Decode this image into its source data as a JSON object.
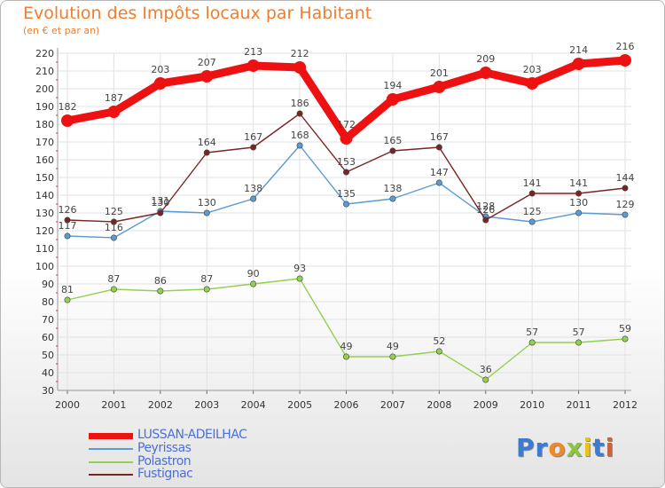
{
  "header": {
    "title": "Evolution des Impôts locaux par Habitant",
    "subtitle": "(en € et par an)"
  },
  "logo": {
    "letters": [
      "P",
      "r",
      "o",
      "x",
      "i",
      "t",
      "i"
    ],
    "colors": [
      "#3b7bd6",
      "#3b7bd6",
      "#f08a24",
      "#8cc63f",
      "#e8c21f",
      "#3b7bd6",
      "#e05d2a"
    ]
  },
  "chart_data": {
    "type": "line",
    "x": [
      "2000",
      "2001",
      "2002",
      "2003",
      "2004",
      "2005",
      "2006",
      "2007",
      "2008",
      "2009",
      "2010",
      "2011",
      "2012"
    ],
    "ylim": [
      30,
      220
    ],
    "yticks": [
      30,
      40,
      50,
      60,
      70,
      80,
      90,
      100,
      110,
      120,
      130,
      140,
      150,
      160,
      170,
      180,
      190,
      200,
      210,
      220
    ],
    "grid": true,
    "legend": "bottom-left",
    "series": [
      {
        "name": "LUSSAN-ADEILHAC",
        "color": "#ee1111",
        "values": [
          182,
          187,
          203,
          207,
          213,
          212,
          172,
          194,
          201,
          209,
          203,
          214,
          216
        ]
      },
      {
        "name": "Peyrissas",
        "color": "#5a9bd4",
        "values": [
          117,
          116,
          131,
          130,
          138,
          168,
          135,
          138,
          147,
          128,
          125,
          130,
          129
        ]
      },
      {
        "name": "Polastron",
        "color": "#92d04f",
        "values": [
          81,
          87,
          86,
          87,
          90,
          93,
          49,
          49,
          52,
          36,
          57,
          57,
          59
        ]
      },
      {
        "name": "Fustignac",
        "color": "#7a2424",
        "values": [
          126,
          125,
          130,
          164,
          167,
          186,
          153,
          165,
          167,
          126,
          141,
          141,
          144
        ]
      }
    ],
    "labels": {
      "LUSSAN-ADEILHAC": [
        "182",
        "187",
        "203",
        "207",
        "213",
        "212",
        "172",
        "194",
        "201",
        "209",
        "203",
        "214",
        "216"
      ],
      "Peyrissas": [
        "117",
        "116",
        "131",
        "130",
        "138",
        "168",
        "135",
        "138",
        "147",
        "128",
        "125",
        "130",
        "129"
      ],
      "Polastron": [
        "81",
        "87",
        "86",
        "87",
        "90",
        "93",
        "49",
        "49",
        "52",
        "36",
        "57",
        "57",
        "59"
      ],
      "Fustignac": [
        "126",
        "125",
        "130",
        "164",
        "167",
        "186",
        "153",
        "165",
        "167",
        "126",
        "141",
        "141",
        "144"
      ]
    }
  }
}
